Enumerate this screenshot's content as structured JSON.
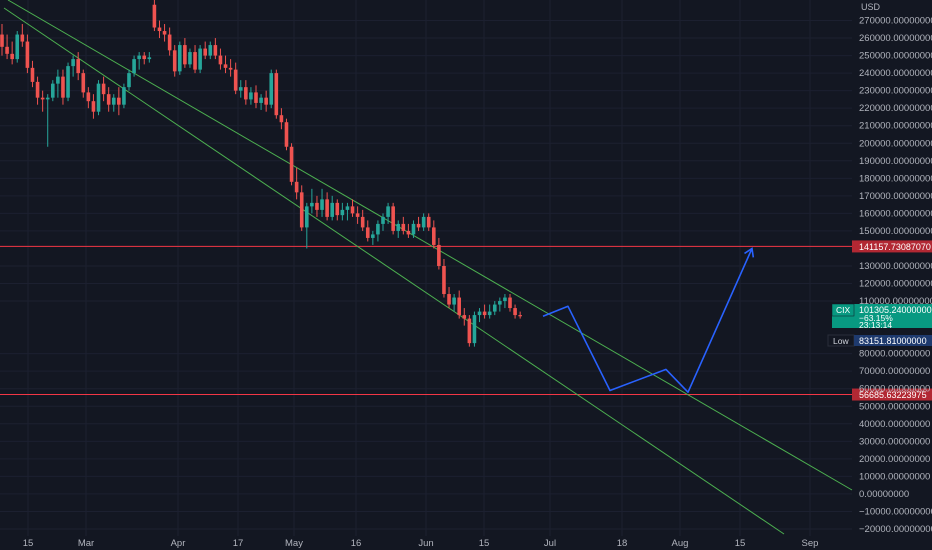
{
  "chart_data": {
    "type": "candlestick",
    "symbol": "CIX",
    "currency": "USD",
    "x_tick_labels": [
      "15",
      "Mar",
      "Apr",
      "17",
      "May",
      "16",
      "Jun",
      "15",
      "Jul",
      "18",
      "Aug",
      "15",
      "Sep"
    ],
    "y_tick_labels": [
      "270000.00000000",
      "260000.00000000",
      "250000.00000000",
      "240000.00000000",
      "230000.00000000",
      "220000.00000000",
      "210000.00000000",
      "200000.00000000",
      "190000.00000000",
      "180000.00000000",
      "170000.00000000",
      "160000.00000000",
      "150000.00000000",
      "130000.00000000",
      "120000.00000000",
      "110000.00000000",
      "80000.00000000",
      "70000.00000000",
      "60000.00000000",
      "50000.00000000",
      "40000.00000000",
      "30000.00000000",
      "20000.00000000",
      "10000.00000000",
      "0.00000000",
      "−10000.00000000",
      "−20000.00000000"
    ],
    "y_range": [
      -24000,
      276000
    ],
    "candles": [
      {
        "o": 262000,
        "h": 268000,
        "l": 250000,
        "c": 255000
      },
      {
        "o": 255000,
        "h": 262000,
        "l": 248000,
        "c": 251000
      },
      {
        "o": 251000,
        "h": 258000,
        "l": 245000,
        "c": 248000
      },
      {
        "o": 248000,
        "h": 264000,
        "l": 246000,
        "c": 262000
      },
      {
        "o": 262000,
        "h": 268000,
        "l": 255000,
        "c": 258000
      },
      {
        "o": 258000,
        "h": 262000,
        "l": 240000,
        "c": 243000
      },
      {
        "o": 243000,
        "h": 247000,
        "l": 232000,
        "c": 235000
      },
      {
        "o": 235000,
        "h": 238000,
        "l": 222000,
        "c": 226000
      },
      {
        "o": 226000,
        "h": 230000,
        "l": 218000,
        "c": 225000
      },
      {
        "o": 225000,
        "h": 228000,
        "l": 198000,
        "c": 226000
      },
      {
        "o": 226000,
        "h": 236000,
        "l": 224000,
        "c": 234000
      },
      {
        "o": 234000,
        "h": 242000,
        "l": 226000,
        "c": 238000
      },
      {
        "o": 238000,
        "h": 242000,
        "l": 222000,
        "c": 226000
      },
      {
        "o": 226000,
        "h": 246000,
        "l": 224000,
        "c": 244000
      },
      {
        "o": 244000,
        "h": 250000,
        "l": 238000,
        "c": 248000
      },
      {
        "o": 248000,
        "h": 252000,
        "l": 236000,
        "c": 240000
      },
      {
        "o": 240000,
        "h": 242000,
        "l": 226000,
        "c": 229000
      },
      {
        "o": 229000,
        "h": 232000,
        "l": 220000,
        "c": 224000
      },
      {
        "o": 224000,
        "h": 228000,
        "l": 214000,
        "c": 218000
      },
      {
        "o": 218000,
        "h": 236000,
        "l": 216000,
        "c": 234000
      },
      {
        "o": 234000,
        "h": 238000,
        "l": 224000,
        "c": 228000
      },
      {
        "o": 228000,
        "h": 232000,
        "l": 218000,
        "c": 222000
      },
      {
        "o": 222000,
        "h": 228000,
        "l": 218000,
        "c": 226000
      },
      {
        "o": 226000,
        "h": 232000,
        "l": 216000,
        "c": 222000
      },
      {
        "o": 222000,
        "h": 234000,
        "l": 220000,
        "c": 232000
      },
      {
        "o": 232000,
        "h": 242000,
        "l": 230000,
        "c": 240000
      },
      {
        "o": 240000,
        "h": 250000,
        "l": 238000,
        "c": 248000
      },
      {
        "o": 248000,
        "h": 252000,
        "l": 242000,
        "c": 250000
      },
      {
        "o": 250000,
        "h": 252000,
        "l": 245000,
        "c": 248000
      },
      {
        "o": 248000,
        "h": 252000,
        "l": 246000,
        "c": 249000
      },
      {
        "o": 279000,
        "h": 284000,
        "l": 264000,
        "c": 266000
      },
      {
        "o": 266000,
        "h": 270000,
        "l": 260000,
        "c": 264000
      },
      {
        "o": 264000,
        "h": 268000,
        "l": 258000,
        "c": 262000
      },
      {
        "o": 262000,
        "h": 266000,
        "l": 250000,
        "c": 253000
      },
      {
        "o": 253000,
        "h": 256000,
        "l": 238000,
        "c": 241000
      },
      {
        "o": 241000,
        "h": 258000,
        "l": 239000,
        "c": 256000
      },
      {
        "o": 256000,
        "h": 260000,
        "l": 243000,
        "c": 245000
      },
      {
        "o": 245000,
        "h": 254000,
        "l": 243000,
        "c": 252000
      },
      {
        "o": 252000,
        "h": 256000,
        "l": 240000,
        "c": 242000
      },
      {
        "o": 242000,
        "h": 256000,
        "l": 240000,
        "c": 254000
      },
      {
        "o": 254000,
        "h": 258000,
        "l": 248000,
        "c": 250000
      },
      {
        "o": 250000,
        "h": 258000,
        "l": 248000,
        "c": 256000
      },
      {
        "o": 256000,
        "h": 260000,
        "l": 248000,
        "c": 250000
      },
      {
        "o": 250000,
        "h": 254000,
        "l": 242000,
        "c": 245000
      },
      {
        "o": 245000,
        "h": 250000,
        "l": 240000,
        "c": 243000
      },
      {
        "o": 243000,
        "h": 248000,
        "l": 238000,
        "c": 242000
      },
      {
        "o": 242000,
        "h": 246000,
        "l": 228000,
        "c": 230000
      },
      {
        "o": 230000,
        "h": 236000,
        "l": 226000,
        "c": 232000
      },
      {
        "o": 232000,
        "h": 236000,
        "l": 222000,
        "c": 225000
      },
      {
        "o": 225000,
        "h": 232000,
        "l": 222000,
        "c": 229000
      },
      {
        "o": 229000,
        "h": 233000,
        "l": 220000,
        "c": 223000
      },
      {
        "o": 223000,
        "h": 228000,
        "l": 219000,
        "c": 226000
      },
      {
        "o": 226000,
        "h": 230000,
        "l": 218000,
        "c": 222000
      },
      {
        "o": 222000,
        "h": 242000,
        "l": 220000,
        "c": 240000
      },
      {
        "o": 240000,
        "h": 242000,
        "l": 214000,
        "c": 216000
      },
      {
        "o": 216000,
        "h": 220000,
        "l": 208000,
        "c": 212000
      },
      {
        "o": 212000,
        "h": 214000,
        "l": 196000,
        "c": 198000
      },
      {
        "o": 198000,
        "h": 200000,
        "l": 176000,
        "c": 178000
      },
      {
        "o": 178000,
        "h": 186000,
        "l": 168000,
        "c": 172000
      },
      {
        "o": 172000,
        "h": 176000,
        "l": 150000,
        "c": 152000
      },
      {
        "o": 152000,
        "h": 166000,
        "l": 140000,
        "c": 164000
      },
      {
        "o": 164000,
        "h": 174000,
        "l": 160000,
        "c": 166000
      },
      {
        "o": 166000,
        "h": 170000,
        "l": 158000,
        "c": 162000
      },
      {
        "o": 162000,
        "h": 174000,
        "l": 158000,
        "c": 168000
      },
      {
        "o": 168000,
        "h": 172000,
        "l": 156000,
        "c": 158000
      },
      {
        "o": 158000,
        "h": 170000,
        "l": 156000,
        "c": 166000
      },
      {
        "o": 166000,
        "h": 168000,
        "l": 156000,
        "c": 159000
      },
      {
        "o": 159000,
        "h": 166000,
        "l": 156000,
        "c": 162000
      },
      {
        "o": 162000,
        "h": 166000,
        "l": 156000,
        "c": 164000
      },
      {
        "o": 164000,
        "h": 168000,
        "l": 158000,
        "c": 160000
      },
      {
        "o": 160000,
        "h": 164000,
        "l": 154000,
        "c": 158000
      },
      {
        "o": 158000,
        "h": 162000,
        "l": 150000,
        "c": 152000
      },
      {
        "o": 152000,
        "h": 156000,
        "l": 144000,
        "c": 146000
      },
      {
        "o": 146000,
        "h": 150000,
        "l": 142000,
        "c": 148000
      },
      {
        "o": 148000,
        "h": 156000,
        "l": 144000,
        "c": 154000
      },
      {
        "o": 154000,
        "h": 160000,
        "l": 150000,
        "c": 158000
      },
      {
        "o": 158000,
        "h": 166000,
        "l": 154000,
        "c": 164000
      },
      {
        "o": 164000,
        "h": 166000,
        "l": 148000,
        "c": 150000
      },
      {
        "o": 150000,
        "h": 156000,
        "l": 146000,
        "c": 154000
      },
      {
        "o": 154000,
        "h": 158000,
        "l": 148000,
        "c": 150000
      },
      {
        "o": 150000,
        "h": 154000,
        "l": 146000,
        "c": 148000
      },
      {
        "o": 148000,
        "h": 156000,
        "l": 146000,
        "c": 154000
      },
      {
        "o": 154000,
        "h": 158000,
        "l": 150000,
        "c": 152000
      },
      {
        "o": 152000,
        "h": 160000,
        "l": 150000,
        "c": 158000
      },
      {
        "o": 158000,
        "h": 160000,
        "l": 150000,
        "c": 152000
      },
      {
        "o": 152000,
        "h": 156000,
        "l": 140000,
        "c": 142000
      },
      {
        "o": 142000,
        "h": 146000,
        "l": 128000,
        "c": 130000
      },
      {
        "o": 130000,
        "h": 134000,
        "l": 112000,
        "c": 114000
      },
      {
        "o": 114000,
        "h": 118000,
        "l": 106000,
        "c": 108000
      },
      {
        "o": 108000,
        "h": 114000,
        "l": 104000,
        "c": 112000
      },
      {
        "o": 112000,
        "h": 116000,
        "l": 100000,
        "c": 102000
      },
      {
        "o": 102000,
        "h": 106000,
        "l": 96000,
        "c": 100000
      },
      {
        "o": 100000,
        "h": 102000,
        "l": 84000,
        "c": 86000
      },
      {
        "o": 86000,
        "h": 104000,
        "l": 84000,
        "c": 102000
      },
      {
        "o": 102000,
        "h": 106000,
        "l": 98000,
        "c": 104000
      },
      {
        "o": 104000,
        "h": 108000,
        "l": 100000,
        "c": 102000
      },
      {
        "o": 102000,
        "h": 108000,
        "l": 100000,
        "c": 104000
      },
      {
        "o": 104000,
        "h": 110000,
        "l": 102000,
        "c": 108000
      },
      {
        "o": 108000,
        "h": 112000,
        "l": 104000,
        "c": 110000
      },
      {
        "o": 110000,
        "h": 114000,
        "l": 106000,
        "c": 112000
      },
      {
        "o": 112000,
        "h": 114000,
        "l": 104000,
        "c": 106000
      },
      {
        "o": 106000,
        "h": 108000,
        "l": 100000,
        "c": 102000
      },
      {
        "o": 102000,
        "h": 104000,
        "l": 100000,
        "c": 101305.24
      }
    ],
    "candle_x_start": 2,
    "candle_x_step": 5.08,
    "horizontal_levels": [
      {
        "value": 141157.7308707,
        "label": "141157.73087070",
        "color": "#f23645"
      },
      {
        "value": 56685.63223975,
        "label": "56685.63223975",
        "color": "#f23645"
      }
    ],
    "channel_lines": [
      {
        "x1": 8,
        "y1": 0,
        "x2": 852,
        "y2": 490,
        "color": "#4caf50"
      },
      {
        "x1": 4,
        "y1": 8,
        "x2": 784,
        "y2": 534,
        "color": "#4caf50"
      }
    ],
    "projection_path": [
      [
        543,
        101305.24
      ],
      [
        568,
        107000
      ],
      [
        610,
        59000
      ],
      [
        666,
        71000
      ],
      [
        688,
        58000
      ],
      [
        752,
        140000
      ]
    ],
    "projection_color": "#2962ff",
    "price_badge": {
      "symbol": "CIX",
      "value": "101305.24000000",
      "change": "−63.15%",
      "countdown": "23:13:14",
      "color": "#089981"
    },
    "low_badge": {
      "label": "Low",
      "value": "83151.81000000",
      "color": "#1e3a6e"
    },
    "colors": {
      "background": "#131722",
      "up": "#26a69a",
      "down": "#ef5350",
      "axis_text": "#b2b5be"
    }
  }
}
